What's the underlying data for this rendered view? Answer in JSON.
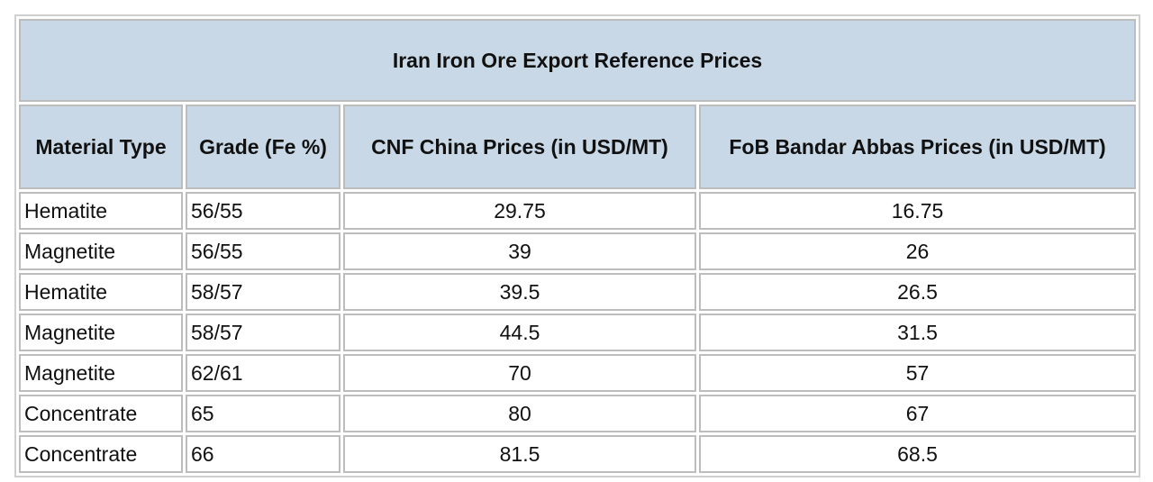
{
  "table": {
    "title": "Iran Iron Ore Export Reference Prices",
    "columns": [
      "Material Type",
      "Grade (Fe %)",
      "CNF China Prices (in USD/MT)",
      "FoB Bandar Abbas Prices (in USD/MT)"
    ],
    "rows": [
      [
        "Hematite",
        "56/55",
        "29.75",
        "16.75"
      ],
      [
        "Magnetite",
        "56/55",
        "39",
        "26"
      ],
      [
        "Hematite",
        "58/57",
        "39.5",
        "26.5"
      ],
      [
        "Magnetite",
        "58/57",
        "44.5",
        "31.5"
      ],
      [
        "Magnetite",
        "62/61",
        "70",
        "57"
      ],
      [
        "Concentrate",
        "65",
        "80",
        "67"
      ],
      [
        "Concentrate",
        "66",
        "81.5",
        "68.5"
      ]
    ]
  }
}
